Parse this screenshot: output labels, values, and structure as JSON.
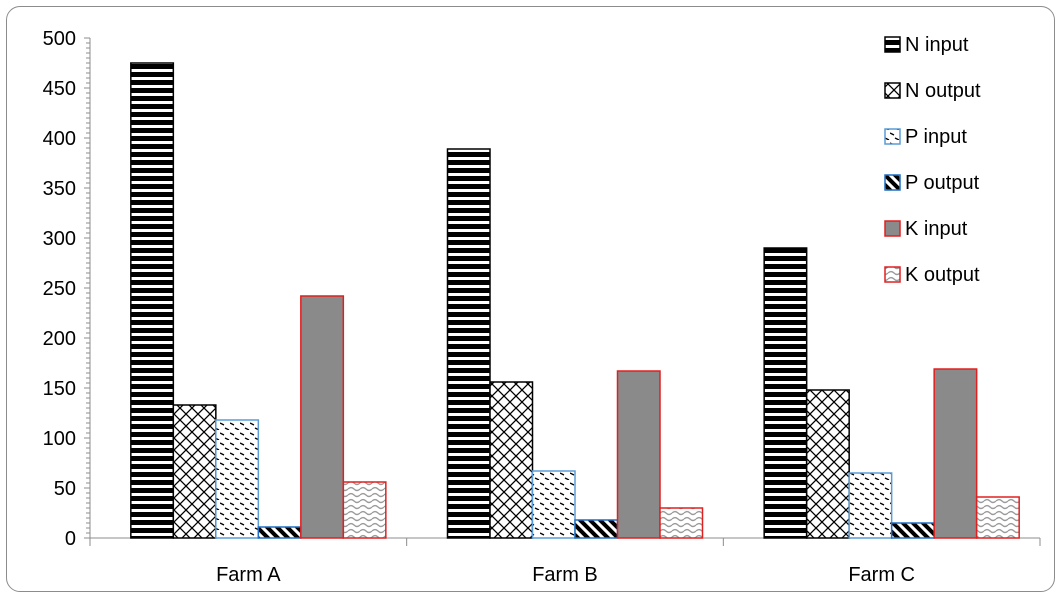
{
  "chart_data": {
    "type": "bar",
    "categories": [
      "Farm A",
      "Farm B",
      "Farm C"
    ],
    "ylim": [
      0,
      500
    ],
    "yticks": [
      "0",
      "50",
      "100",
      "150",
      "200",
      "250",
      "300",
      "350",
      "400",
      "450",
      "500"
    ],
    "ytick_values": [
      0,
      50,
      100,
      150,
      200,
      250,
      300,
      350,
      400,
      450,
      500
    ],
    "legend_position": "top-right",
    "grid": false,
    "series": [
      {
        "name": "N input",
        "values": [
          475,
          389,
          290
        ],
        "pattern": "hstripes",
        "stroke": "#000000"
      },
      {
        "name": "N output",
        "values": [
          133,
          156,
          148
        ],
        "pattern": "crosshatch",
        "stroke": "#000000"
      },
      {
        "name": "P input",
        "values": [
          118,
          67,
          65
        ],
        "pattern": "dashes",
        "stroke": "#5b9bd5"
      },
      {
        "name": "P output",
        "values": [
          11,
          18,
          15
        ],
        "pattern": "diagonal",
        "stroke": "#1f6fc4"
      },
      {
        "name": "K input",
        "values": [
          242,
          167,
          169
        ],
        "pattern": "solidgray",
        "stroke": "#e02020"
      },
      {
        "name": "K output",
        "values": [
          56,
          30,
          41
        ],
        "pattern": "waves",
        "stroke": "#e02020"
      }
    ]
  }
}
